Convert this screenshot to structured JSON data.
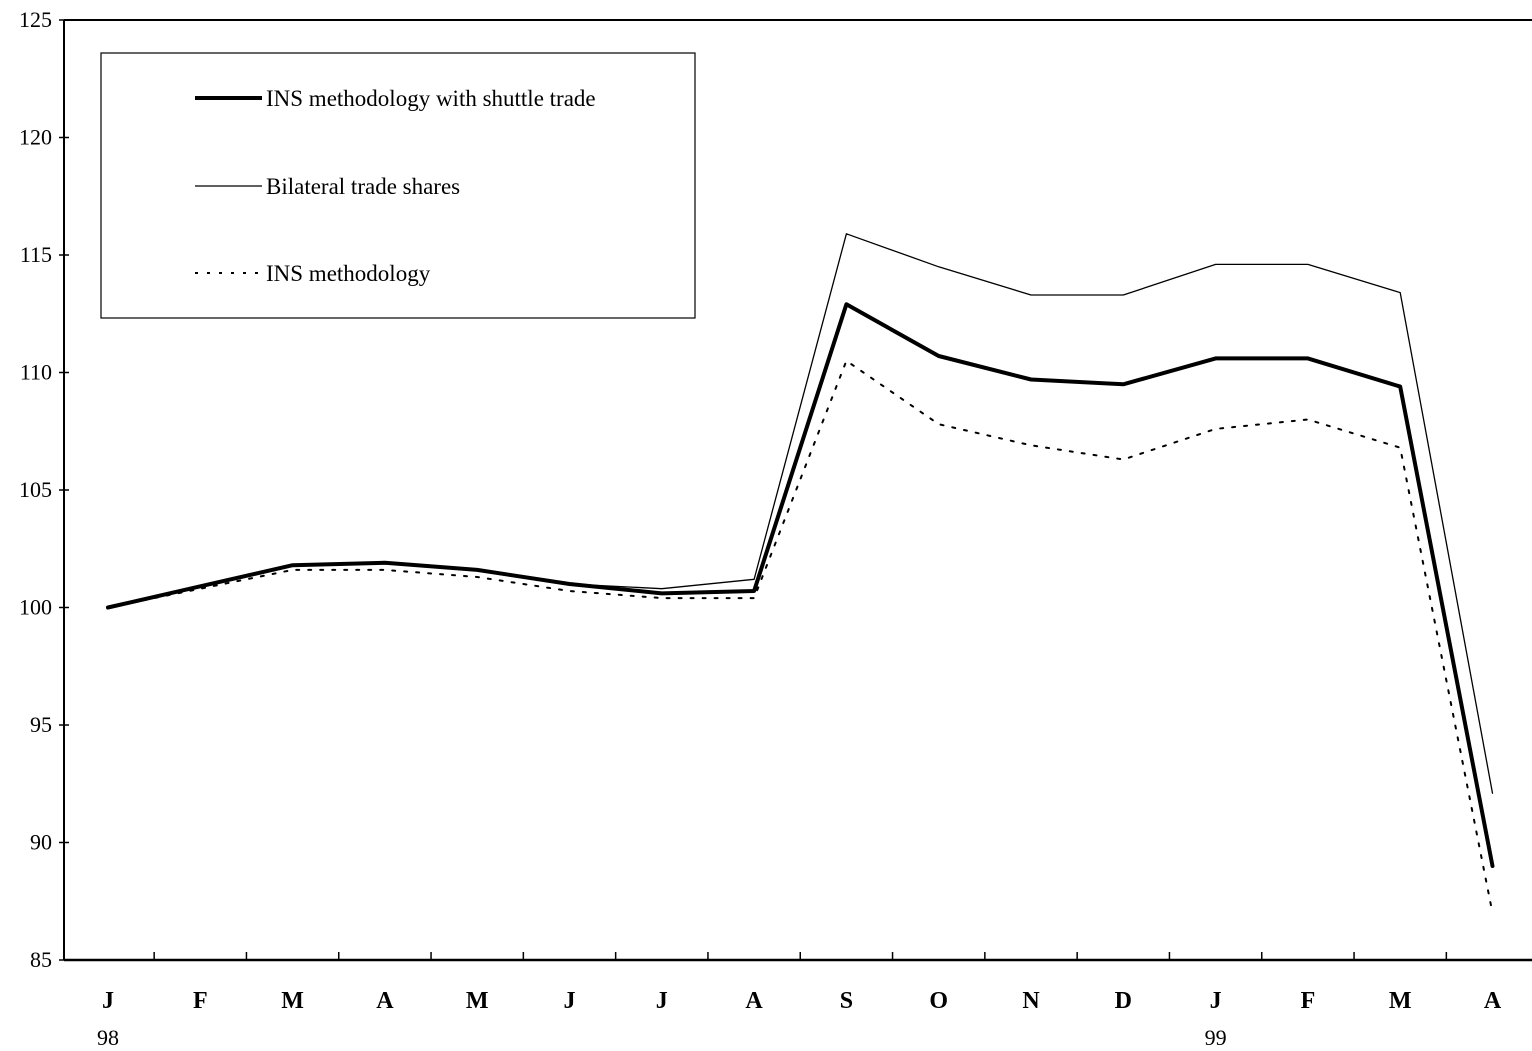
{
  "chart_data": {
    "type": "line",
    "title": "",
    "xlabel": "",
    "ylabel": "",
    "ylim": [
      85,
      125
    ],
    "yticks": [
      "125",
      "120",
      "115",
      "110",
      "105",
      "100",
      "95",
      "90",
      "85"
    ],
    "categories": [
      "J",
      "F",
      "M",
      "A",
      "M",
      "J",
      "J",
      "A",
      "S",
      "O",
      "N",
      "D",
      "J",
      "F",
      "M",
      "A"
    ],
    "year_labels": [
      {
        "index": 0,
        "label": "98"
      },
      {
        "index": 12,
        "label": "99"
      }
    ],
    "grid": false,
    "legend_position": "top-left",
    "series": [
      {
        "name": "INS methodology with shuttle trade",
        "style": "thick-solid",
        "color": "#000000",
        "values": [
          100.0,
          100.9,
          101.8,
          101.9,
          101.6,
          101.0,
          100.6,
          100.7,
          112.9,
          110.7,
          109.7,
          109.5,
          110.6,
          110.6,
          109.4,
          89.0
        ]
      },
      {
        "name": "Bilateral trade shares",
        "style": "thin-solid",
        "color": "#000000",
        "values": [
          100.0,
          100.9,
          101.8,
          101.9,
          101.6,
          101.0,
          100.8,
          101.2,
          115.9,
          114.5,
          113.3,
          113.3,
          114.6,
          114.6,
          113.4,
          92.1
        ]
      },
      {
        "name": "INS methodology",
        "style": "dotted",
        "color": "#000000",
        "values": [
          100.0,
          100.8,
          101.6,
          101.6,
          101.3,
          100.7,
          100.4,
          100.4,
          110.5,
          107.8,
          106.9,
          106.3,
          107.6,
          108.0,
          106.8,
          87.0
        ]
      }
    ]
  }
}
